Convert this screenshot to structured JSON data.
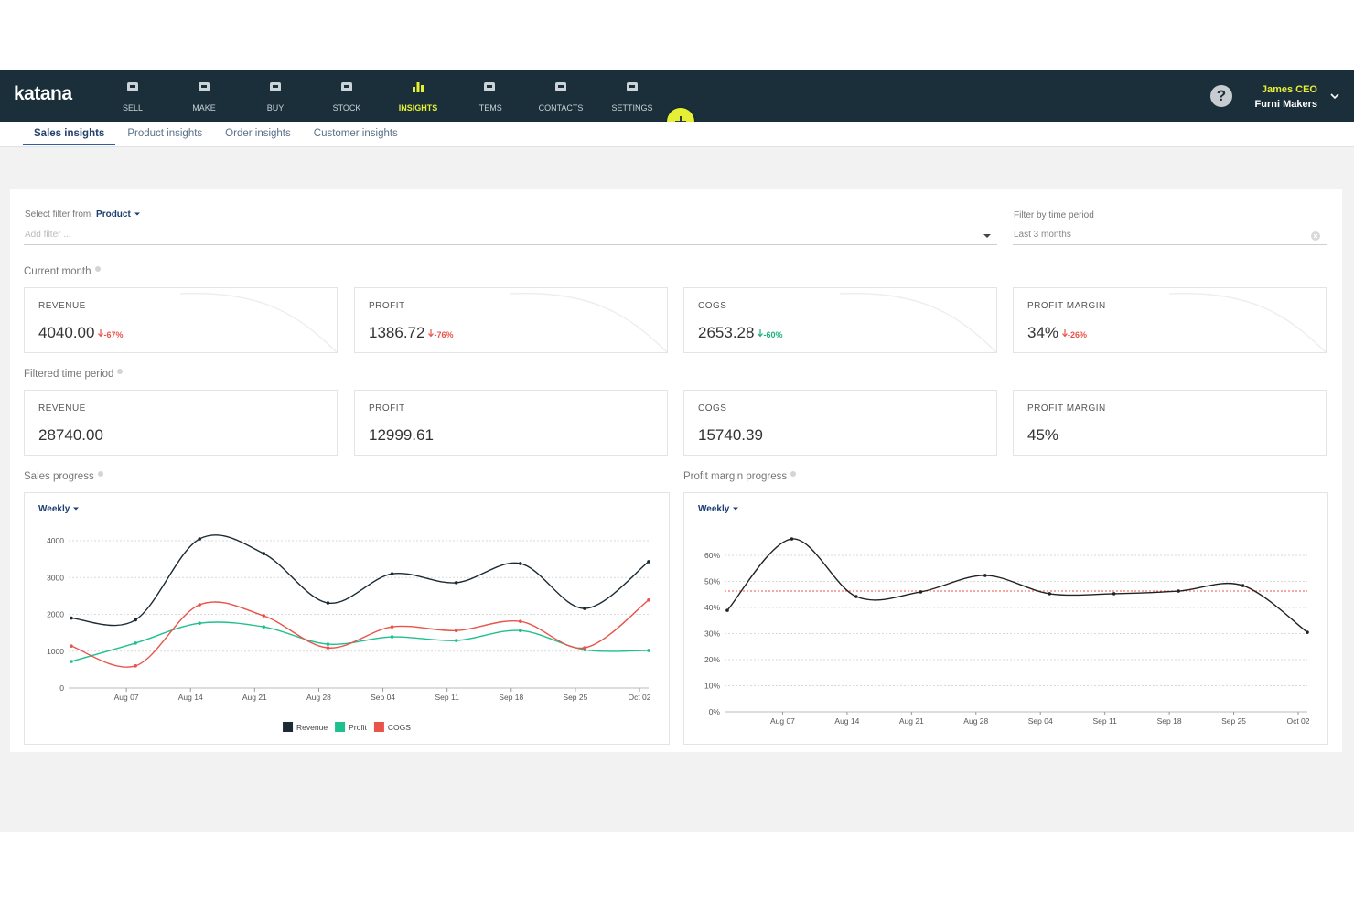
{
  "nav": {
    "brand": "katana",
    "items": [
      "SELL",
      "MAKE",
      "BUY",
      "STOCK",
      "INSIGHTS",
      "ITEMS",
      "CONTACTS",
      "SETTINGS"
    ],
    "active": "INSIGHTS",
    "help_icon": "?"
  },
  "user": {
    "name": "James CEO",
    "company": "Furni Makers"
  },
  "tabs": {
    "items": [
      "Sales insights",
      "Product insights",
      "Order insights",
      "Customer insights"
    ],
    "active": "Sales insights"
  },
  "filters": {
    "label": "Select filter from",
    "selector": "Product",
    "placeholder": "Add filter ...",
    "time_label": "Filter by time period",
    "time_value": "Last 3 months"
  },
  "current_month": {
    "title": "Current month",
    "cards": [
      {
        "label": "REVENUE",
        "value": "4040.00",
        "change": "-67%",
        "change_color": "#e8534a"
      },
      {
        "label": "PROFIT",
        "value": "1386.72",
        "change": "-76%",
        "change_color": "#e8534a"
      },
      {
        "label": "COGS",
        "value": "2653.28",
        "change": "-60%",
        "change_color": "#1fae7f"
      },
      {
        "label": "PROFIT MARGIN",
        "value": "34%",
        "change": "-26%",
        "change_color": "#e8534a"
      }
    ]
  },
  "filtered_period": {
    "title": "Filtered time period",
    "cards": [
      {
        "label": "REVENUE",
        "value": "28740.00"
      },
      {
        "label": "PROFIT",
        "value": "12999.61"
      },
      {
        "label": "COGS",
        "value": "15740.39"
      },
      {
        "label": "PROFIT MARGIN",
        "value": "45%"
      }
    ]
  },
  "chart_data": [
    {
      "type": "line",
      "title": "Sales progress",
      "period": "Weekly",
      "categories": [
        null,
        "Aug 07",
        "Aug 14",
        "Aug 21",
        "Aug 28",
        "Sep 04",
        "Sep 11",
        "Sep 18",
        "Sep 25",
        "Oct 02"
      ],
      "series": [
        {
          "name": "Revenue",
          "color": "#1b2a33",
          "markers": true,
          "values": [
            1900,
            1850,
            4050,
            3650,
            2310,
            3100,
            2860,
            3380,
            2160,
            3430
          ]
        },
        {
          "name": "Profit",
          "color": "#1fbf8f",
          "markers": true,
          "values": [
            720,
            1220,
            1760,
            1660,
            1190,
            1390,
            1290,
            1560,
            1040,
            1020
          ]
        },
        {
          "name": "COGS",
          "color": "#e8534a",
          "markers": true,
          "values": [
            1140,
            600,
            2260,
            1960,
            1090,
            1660,
            1560,
            1810,
            1090,
            2390
          ]
        }
      ],
      "ylim": [
        0,
        4000
      ],
      "yticks": [
        0,
        1000,
        2000,
        3000,
        4000
      ],
      "grid": true,
      "legend": "bottom"
    },
    {
      "type": "line",
      "title": "Profit margin progress",
      "period": "Weekly",
      "categories": [
        null,
        "Aug 07",
        "Aug 14",
        "Aug 21",
        "Aug 28",
        "Sep 04",
        "Sep 11",
        "Sep 18",
        "Sep 25",
        "Oct 02"
      ],
      "series": [
        {
          "name": "Profit margin",
          "color": "#222222",
          "markers": true,
          "values": [
            38.9,
            66.3,
            44.2,
            46,
            52.3,
            45.3,
            45.3,
            46.3,
            48.4,
            30.5
          ]
        }
      ],
      "reference_line": {
        "value": 46.3,
        "color": "#e8534a"
      },
      "ylim": [
        0,
        60
      ],
      "yticks": [
        {
          "value": 0,
          "label": "0%"
        },
        {
          "value": 10,
          "label": "10%"
        },
        {
          "value": 20,
          "label": "20%"
        },
        {
          "value": 30,
          "label": "30%"
        },
        {
          "value": 40,
          "label": "40%"
        },
        {
          "value": 50,
          "label": "50%"
        },
        {
          "value": 60,
          "label": "60%"
        }
      ],
      "grid": true,
      "legend": "none"
    }
  ]
}
